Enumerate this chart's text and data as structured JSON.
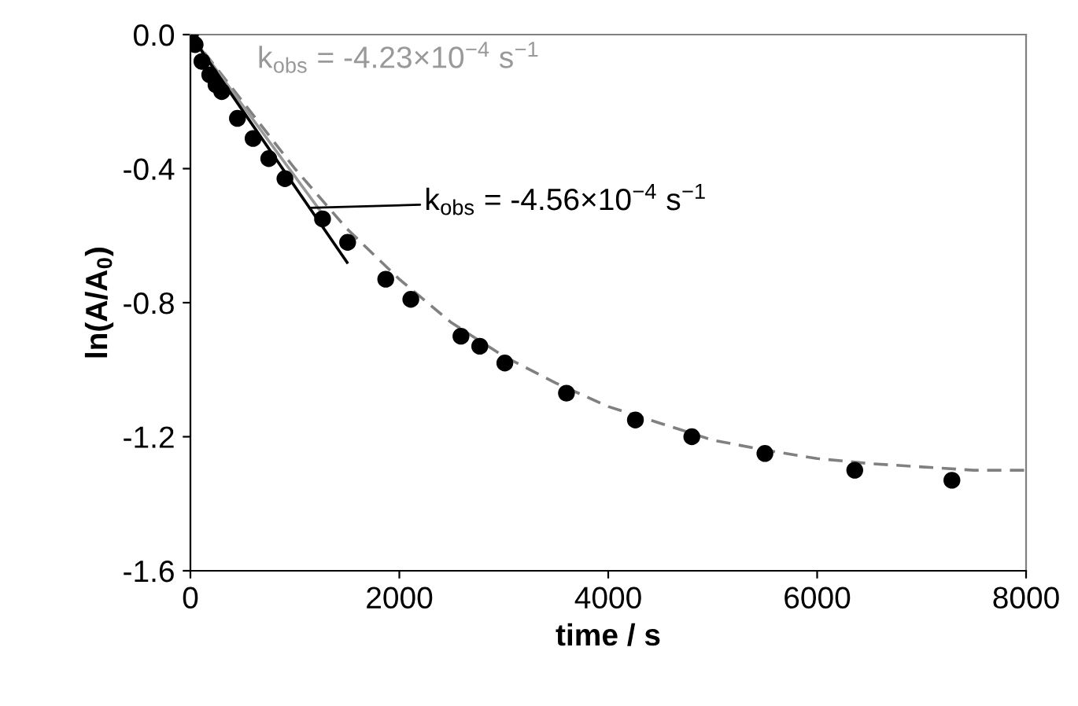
{
  "chart_data": {
    "type": "scatter",
    "xlabel": "time / s",
    "ylabel": "ln(A/A$_{0}$)",
    "xlim": [
      0,
      8000
    ],
    "ylim": [
      -1.6,
      0.0
    ],
    "xticks": [
      0,
      2000,
      4000,
      6000,
      8000
    ],
    "yticks": [
      {
        "value": 0.0,
        "label": "0.0"
      },
      {
        "value": -0.4,
        "label": "-0.4"
      },
      {
        "value": -0.8,
        "label": "-0.8"
      },
      {
        "value": -1.2,
        "label": "-1.2"
      },
      {
        "value": -1.6,
        "label": "-1.6"
      }
    ],
    "grid": false,
    "legend": false,
    "series": [
      {
        "type": "line",
        "marker": "none",
        "color": "#808080",
        "line_style": "dashed",
        "x": [
          0,
          500,
          1000,
          1500,
          2000,
          2500,
          3000,
          3500,
          4000,
          4500,
          5000,
          5500,
          6000,
          6500,
          7000,
          7500,
          8000
        ],
        "values": [
          0,
          -0.2,
          -0.4,
          -0.58,
          -0.73,
          -0.86,
          -0.96,
          -1.04,
          -1.11,
          -1.16,
          -1.21,
          -1.24,
          -1.265,
          -1.28,
          -1.29,
          -1.3,
          -1.3
        ]
      },
      {
        "type": "line",
        "marker": "none",
        "color": "#999999",
        "line_style": "solid",
        "x": [
          0,
          1300
        ],
        "values": [
          0,
          -0.55
        ]
      },
      {
        "type": "line",
        "marker": "none",
        "color": "#000000",
        "line_style": "solid",
        "x": [
          0,
          1500
        ],
        "values": [
          0,
          -0.68
        ]
      },
      {
        "marker": "circle",
        "color": "#000000",
        "x": [
          0,
          45,
          110,
          185,
          245,
          300,
          450,
          600,
          750,
          905,
          1265,
          1505,
          1870,
          2110,
          2590,
          2770,
          3010,
          3600,
          4260,
          4800,
          5500,
          6360,
          7290
        ],
        "values": [
          0,
          -0.03,
          -0.08,
          -0.12,
          -0.15,
          -0.17,
          -0.25,
          -0.31,
          -0.37,
          -0.43,
          -0.55,
          -0.62,
          -0.73,
          -0.79,
          -0.9,
          -0.93,
          -0.98,
          -1.07,
          -1.15,
          -1.2,
          -1.25,
          -1.3,
          -1.33
        ]
      }
    ],
    "annotations": [
      "k$_{obs}$ = -4.23×10$^{−4}$ s$^{−1}$",
      "k$_{obs}$ = -4.56×10$^{−4}$ s$^{−1}$"
    ]
  }
}
